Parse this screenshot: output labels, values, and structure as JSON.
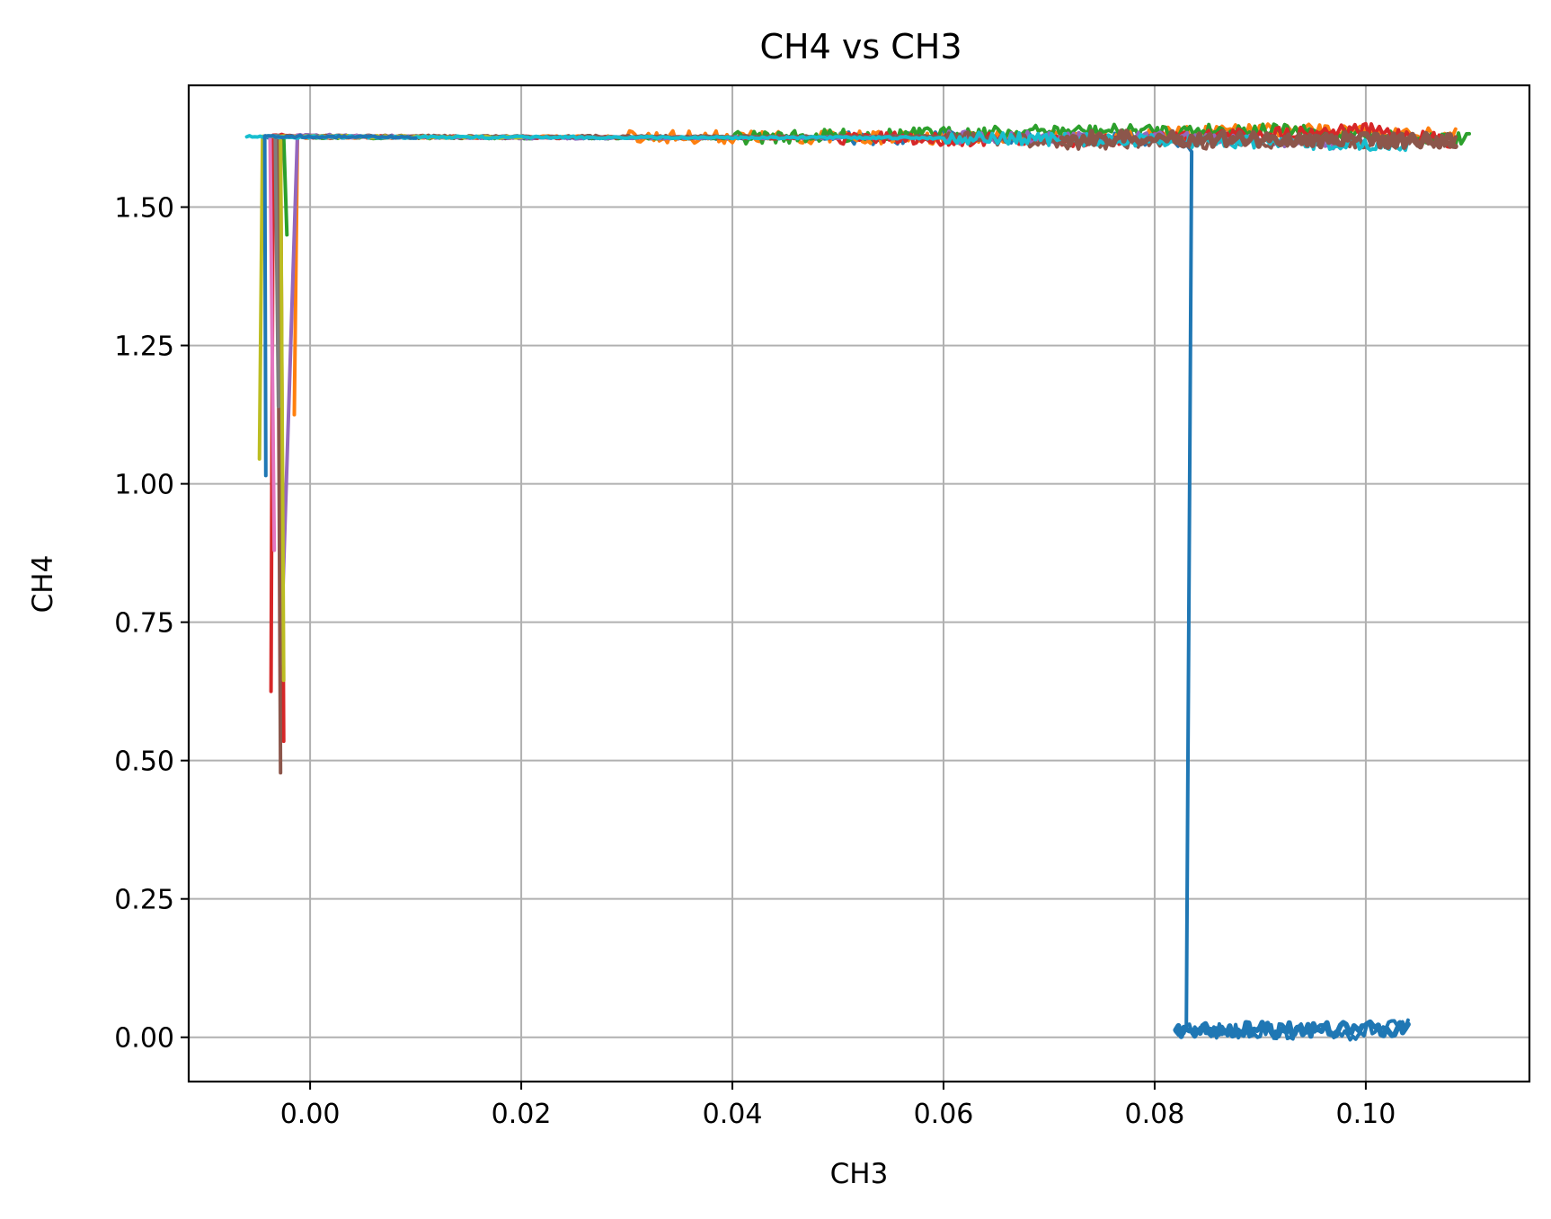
{
  "chart_data": {
    "type": "line",
    "title": "CH4 vs CH3",
    "xlabel": "CH3",
    "ylabel": "CH4",
    "xlim": [
      -0.0115,
      0.1155
    ],
    "ylim": [
      -0.08,
      1.72
    ],
    "xticks": [
      0.0,
      0.02,
      0.04,
      0.06,
      0.08,
      0.1
    ],
    "xtick_labels": [
      "0.00",
      "0.02",
      "0.04",
      "0.06",
      "0.08",
      "0.10"
    ],
    "yticks": [
      0.0,
      0.25,
      0.5,
      0.75,
      1.0,
      1.25,
      1.5
    ],
    "ytick_labels": [
      "0.00",
      "0.25",
      "0.50",
      "0.75",
      "1.00",
      "1.25",
      "1.50"
    ],
    "grid": true,
    "colors": [
      "#1f77b4",
      "#ff7f0e",
      "#2ca02c",
      "#d62728",
      "#9467bd",
      "#8c564b",
      "#e377c2",
      "#7f7f7f",
      "#bcbd22",
      "#17becf"
    ],
    "plateau_level": 1.625,
    "series": [
      {
        "color": "#1f77b4",
        "x": [
          -0.0045,
          0.02,
          0.05,
          0.0705,
          0.083,
          0.0835,
          0.083,
          0.082
        ],
        "y": [
          1.627,
          1.626,
          1.624,
          1.628,
          1.62,
          1.6,
          0.02,
          0.01
        ]
      },
      {
        "color": "#1f77b4",
        "x": [
          0.082,
          0.09,
          0.098,
          0.104
        ],
        "y": [
          0.01,
          0.012,
          0.008,
          0.02
        ]
      },
      {
        "color": "#ff7f0e",
        "x": [
          -0.0015,
          -0.0012,
          0.03,
          0.07,
          0.0915,
          0.1085
        ],
        "y": [
          1.125,
          1.626,
          1.627,
          1.625,
          1.64,
          1.63
        ]
      },
      {
        "color": "#2ca02c",
        "x": [
          -0.0022,
          -0.0025,
          0.04,
          0.0695,
          0.09,
          0.1098
        ],
        "y": [
          1.45,
          1.626,
          1.625,
          1.637,
          1.64,
          1.622
        ]
      },
      {
        "color": "#d62728",
        "x": [
          -0.0037,
          -0.0035,
          0.0,
          0.05,
          0.072,
          0.1,
          0.1085
        ],
        "y": [
          0.625,
          1.63,
          1.627,
          1.625,
          1.62,
          1.64,
          1.618
        ]
      },
      {
        "color": "#d62728",
        "x": [
          -0.0025,
          -0.0028,
          0.02
        ],
        "y": [
          0.535,
          1.628,
          1.626
        ]
      },
      {
        "color": "#9467bd",
        "x": [
          -0.0028,
          -0.0012,
          0.02,
          0.06,
          0.08,
          0.1
        ],
        "y": [
          0.675,
          1.63,
          1.625,
          1.626,
          1.625,
          1.615
        ]
      },
      {
        "color": "#8c564b",
        "x": [
          -0.0028,
          -0.0031,
          0.06,
          0.0715,
          0.1085
        ],
        "y": [
          0.478,
          1.628,
          1.627,
          1.616,
          1.618
        ]
      },
      {
        "color": "#e377c2",
        "x": [
          -0.0034,
          -0.0038,
          0.01
        ],
        "y": [
          0.88,
          1.628,
          1.626
        ]
      },
      {
        "color": "#7f7f7f",
        "x": [
          -0.003,
          -0.0033,
          0.01
        ],
        "y": [
          1.14,
          1.628,
          1.626
        ]
      },
      {
        "color": "#bcbd22",
        "x": [
          -0.0048,
          -0.0045,
          0.02
        ],
        "y": [
          1.045,
          1.628,
          1.626
        ]
      },
      {
        "color": "#bcbd22",
        "x": [
          -0.0025,
          -0.0028
        ],
        "y": [
          0.645,
          1.62
        ]
      },
      {
        "color": "#17becf",
        "x": [
          -0.006,
          0.06,
          0.104
        ],
        "y": [
          1.627,
          1.625,
          1.613
        ]
      },
      {
        "color": "#1f77b4",
        "x": [
          -0.0042,
          -0.0043,
          0.01
        ],
        "y": [
          1.015,
          1.628,
          1.626
        ]
      }
    ]
  }
}
